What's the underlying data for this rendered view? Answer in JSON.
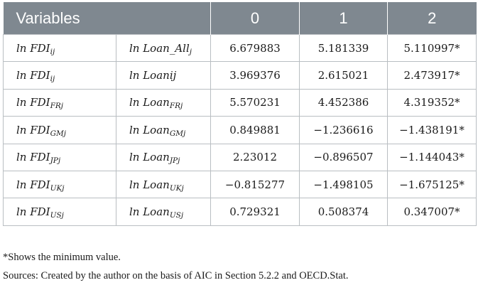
{
  "table": {
    "headers": [
      "Variables",
      "0",
      "1",
      "2"
    ],
    "rows": [
      {
        "var1": {
          "base": "ln FDI",
          "sub": "ij"
        },
        "var2": {
          "base": "ln Loan_All",
          "sub": "j"
        },
        "values": [
          "6.679883",
          "5.181339",
          "5.110997*"
        ]
      },
      {
        "var1": {
          "base": "ln FDI",
          "sub": "ij"
        },
        "var2": {
          "base": "ln Loanij",
          "sub": ""
        },
        "values": [
          "3.969376",
          "2.615021",
          "2.473917*"
        ]
      },
      {
        "var1": {
          "base": "ln FDI",
          "sub": "FRj"
        },
        "var2": {
          "base": "ln Loan",
          "sub": "FRj"
        },
        "values": [
          "5.570231",
          "4.452386",
          "4.319352*"
        ]
      },
      {
        "var1": {
          "base": "ln FDI",
          "sub": "GMj"
        },
        "var2": {
          "base": "ln Loan",
          "sub": "GMj"
        },
        "values": [
          "0.849881",
          "−1.236616",
          "−1.438191*"
        ]
      },
      {
        "var1": {
          "base": "ln FDI",
          "sub": "JPj"
        },
        "var2": {
          "base": "ln Loan",
          "sub": "JPj"
        },
        "values": [
          "2.23012",
          "−0.896507",
          "−1.144043*"
        ]
      },
      {
        "var1": {
          "base": "ln FDI",
          "sub": "UKj"
        },
        "var2": {
          "base": "ln Loan",
          "sub": "UKj"
        },
        "values": [
          "−0.815277",
          "−1.498105",
          "−1.675125*"
        ]
      },
      {
        "var1": {
          "base": "ln FDI",
          "sub": "USj"
        },
        "var2": {
          "base": "ln Loan",
          "sub": "USj"
        },
        "values": [
          "0.729321",
          "0.508374",
          "0.347007*"
        ]
      }
    ]
  },
  "notes": {
    "footnote": "*Shows the minimum value.",
    "sources": "Sources: Created by the author on the basis of AIC in Section 5.2.2 and OECD.Stat."
  },
  "colors": {
    "header_bg": "#7f8890",
    "header_text": "#ffffff",
    "border": "#b9bec2"
  }
}
